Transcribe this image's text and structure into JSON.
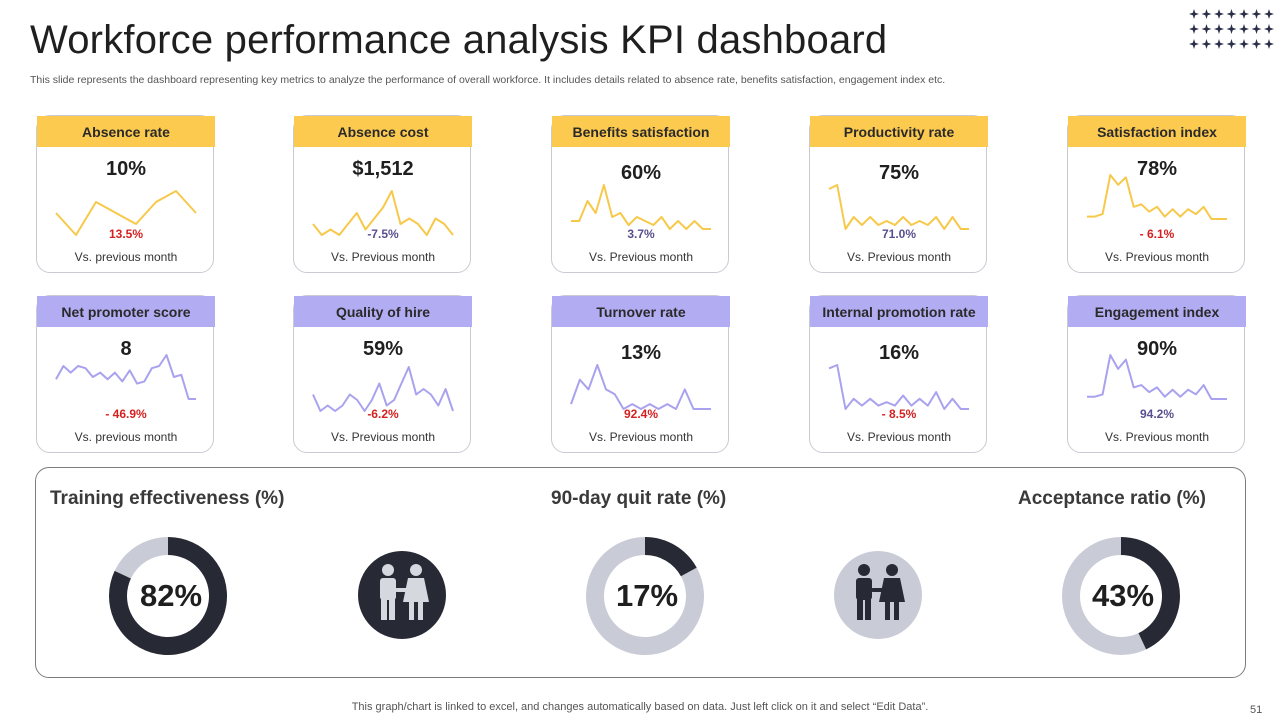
{
  "header": {
    "title": "Workforce performance analysis KPI dashboard",
    "subtitle": "This slide represents the dashboard representing key metrics to analyze the performance of overall workforce. It includes details related to absence rate, benefits satisfaction, engagement index etc."
  },
  "colors": {
    "yellow": "#fdca50",
    "purple": "#b2acf3",
    "yellow_line": "#f7c94a",
    "purple_line": "#a9a2ee",
    "dark": "#272935",
    "light": "#c9ccd6"
  },
  "chart_data": [
    {
      "type": "line",
      "title": "Absence rate",
      "value": "10%",
      "change": "13.5%",
      "note": "Vs. previous month",
      "values": [
        6,
        4,
        7,
        6,
        5,
        7,
        8,
        6
      ]
    },
    {
      "type": "line",
      "title": "Absence cost",
      "value": "$1,512",
      "change": "-7.5%",
      "note": "Vs. Previous month",
      "values": [
        5,
        3,
        4,
        3,
        5,
        7,
        4,
        6,
        8,
        11,
        5,
        6,
        5,
        3,
        6,
        5,
        3
      ]
    },
    {
      "type": "line",
      "title": "Benefits satisfaction",
      "value": "60%",
      "change": "3.7%",
      "note": "Vs. Previous month",
      "values": [
        4,
        4,
        9,
        6,
        13,
        5,
        6,
        3,
        5,
        4,
        3,
        5,
        2,
        4,
        2,
        4,
        2,
        2
      ]
    },
    {
      "type": "line",
      "title": "Productivity rate",
      "value": "75%",
      "change": "71.0%",
      "note": "Vs. Previous month",
      "values": [
        12,
        13,
        2,
        5,
        3,
        5,
        3,
        4,
        3,
        5,
        3,
        4,
        3,
        5,
        2,
        5,
        2,
        2
      ]
    },
    {
      "type": "line",
      "title": "Satisfaction index",
      "value": "78%",
      "change": "- 6.1%",
      "note": "Vs. Previous month",
      "values": [
        4,
        4,
        5,
        21,
        17,
        20,
        8,
        9,
        6,
        8,
        4,
        7,
        4,
        7,
        5,
        8,
        3,
        3,
        3
      ]
    },
    {
      "type": "line",
      "title": "Net promoter score",
      "value": "8",
      "change": "- 46.9%",
      "note": "Vs. previous month",
      "values": [
        10,
        16,
        13,
        16,
        15,
        11,
        13,
        10,
        13,
        9,
        14,
        8,
        9,
        15,
        16,
        21,
        11,
        12,
        1,
        1
      ]
    },
    {
      "type": "line",
      "title": "Quality of hire",
      "value": "59%",
      "change": "-6.2%",
      "note": "Vs. Previous month",
      "values": [
        6,
        3,
        4,
        3,
        4,
        6,
        5,
        3,
        5,
        8,
        4,
        5,
        8,
        11,
        6,
        7,
        6,
        4,
        7,
        3
      ]
    },
    {
      "type": "line",
      "title": "Turnover rate",
      "value": "13%",
      "change": "92.4%",
      "note": "Vs. Previous month",
      "values": [
        3,
        8,
        6,
        11,
        6,
        5,
        2,
        3,
        2,
        3,
        2,
        3,
        2,
        6,
        2,
        2,
        2
      ]
    },
    {
      "type": "line",
      "title": "Internal promotion rate",
      "value": "16%",
      "change": "- 8.5%",
      "note": "Vs. Previous month",
      "values": [
        14,
        15,
        2,
        5,
        3,
        5,
        3,
        4,
        3,
        6,
        3,
        5,
        3,
        7,
        2,
        5,
        2,
        2
      ]
    },
    {
      "type": "line",
      "title": "Engagement index",
      "value": "90%",
      "change": "94.2%",
      "note": "Vs. Previous month",
      "values": [
        3,
        3,
        4,
        21,
        15,
        19,
        7,
        8,
        5,
        7,
        3,
        6,
        3,
        6,
        4,
        8,
        2,
        2,
        2
      ]
    },
    {
      "type": "pie",
      "title": "Training effectiveness (%)",
      "percent": 82,
      "label": "82%"
    },
    {
      "type": "pie",
      "title": "90-day quit rate (%)",
      "percent": 17,
      "label": "17%"
    },
    {
      "type": "pie",
      "title": "Acceptance ratio (%)",
      "percent": 43,
      "label": "43%"
    }
  ],
  "footer": {
    "note": "This graph/chart is linked to excel,  and changes automatically based on data. Just left click on it and select “Edit Data”.",
    "page": "51"
  }
}
